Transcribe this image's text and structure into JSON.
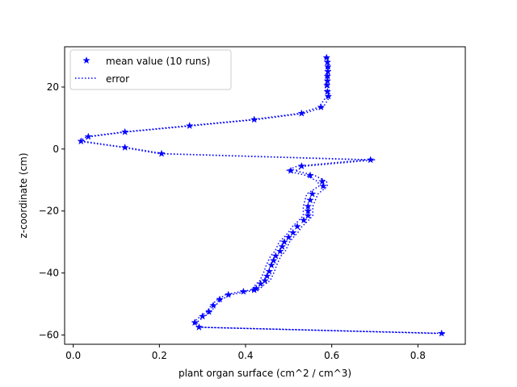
{
  "chart_data": {
    "type": "line",
    "title": "",
    "xlabel": "plant organ surface (cm^2 / cm^3)",
    "ylabel": "z-coordinate (cm)",
    "xlim": [
      -0.02,
      0.91
    ],
    "ylim": [
      -63,
      33
    ],
    "xticks": [
      0.0,
      0.2,
      0.4,
      0.6,
      0.8
    ],
    "xtick_labels": [
      "0.0",
      "0.2",
      "0.4",
      "0.6",
      "0.8"
    ],
    "yticks": [
      -60,
      -40,
      -20,
      0,
      20
    ],
    "ytick_labels": [
      "−60",
      "−40",
      "−20",
      "0",
      "20"
    ],
    "grid": false,
    "legend_position": "top-left",
    "color": "#0000ff",
    "series": [
      {
        "name": "mean value (10 runs)",
        "marker": "star",
        "line": "none",
        "x": [
          0.588,
          0.59,
          0.591,
          0.591,
          0.59,
          0.59,
          0.589,
          0.59,
          0.592,
          0.575,
          0.53,
          0.42,
          0.27,
          0.12,
          0.035,
          0.018,
          0.12,
          0.205,
          0.69,
          0.53,
          0.505,
          0.55,
          0.578,
          0.58,
          0.555,
          0.55,
          0.545,
          0.545,
          0.545,
          0.535,
          0.52,
          0.51,
          0.5,
          0.49,
          0.485,
          0.48,
          0.47,
          0.465,
          0.46,
          0.455,
          0.45,
          0.445,
          0.435,
          0.425,
          0.42,
          0.395,
          0.36,
          0.34,
          0.325,
          0.315,
          0.3,
          0.282,
          0.292,
          0.855
        ],
        "y": [
          29.5,
          28.0,
          26.5,
          25.0,
          23.5,
          22.0,
          20.5,
          18.5,
          17.0,
          13.5,
          11.5,
          9.5,
          7.5,
          5.5,
          4.0,
          2.5,
          0.5,
          -1.5,
          -3.5,
          -5.5,
          -7.0,
          -8.5,
          -10.5,
          -12.0,
          -14.5,
          -16.5,
          -18.5,
          -20.0,
          -21.5,
          -23.0,
          -25.0,
          -27.0,
          -28.5,
          -30.0,
          -31.5,
          -33.0,
          -34.5,
          -36.0,
          -37.5,
          -39.5,
          -41.0,
          -42.5,
          -43.5,
          -45.0,
          -45.5,
          -46.0,
          -47.0,
          -48.5,
          -50.5,
          -52.5,
          -54.0,
          -56.0,
          -57.5,
          -59.5
        ]
      },
      {
        "name": "error",
        "line": "dotted",
        "upper_x": [
          0.592,
          0.594,
          0.595,
          0.595,
          0.594,
          0.594,
          0.593,
          0.594,
          0.596,
          0.58,
          0.536,
          0.426,
          0.276,
          0.124,
          0.039,
          0.022,
          0.124,
          0.211,
          0.701,
          0.54,
          0.515,
          0.56,
          0.588,
          0.59,
          0.568,
          0.562,
          0.556,
          0.556,
          0.556,
          0.546,
          0.531,
          0.521,
          0.511,
          0.502,
          0.497,
          0.492,
          0.482,
          0.477,
          0.472,
          0.467,
          0.462,
          0.457,
          0.445,
          0.434,
          0.428,
          0.402,
          0.366,
          0.345,
          0.33,
          0.32,
          0.305,
          0.286,
          0.296,
          0.865
        ],
        "lower_x": [
          0.584,
          0.586,
          0.587,
          0.587,
          0.586,
          0.586,
          0.585,
          0.586,
          0.588,
          0.57,
          0.524,
          0.414,
          0.264,
          0.116,
          0.031,
          0.014,
          0.116,
          0.199,
          0.679,
          0.52,
          0.495,
          0.54,
          0.568,
          0.57,
          0.542,
          0.538,
          0.534,
          0.534,
          0.534,
          0.524,
          0.509,
          0.499,
          0.489,
          0.478,
          0.473,
          0.468,
          0.458,
          0.453,
          0.448,
          0.443,
          0.438,
          0.433,
          0.425,
          0.416,
          0.412,
          0.388,
          0.354,
          0.335,
          0.32,
          0.31,
          0.295,
          0.278,
          0.288,
          0.845
        ]
      }
    ]
  }
}
